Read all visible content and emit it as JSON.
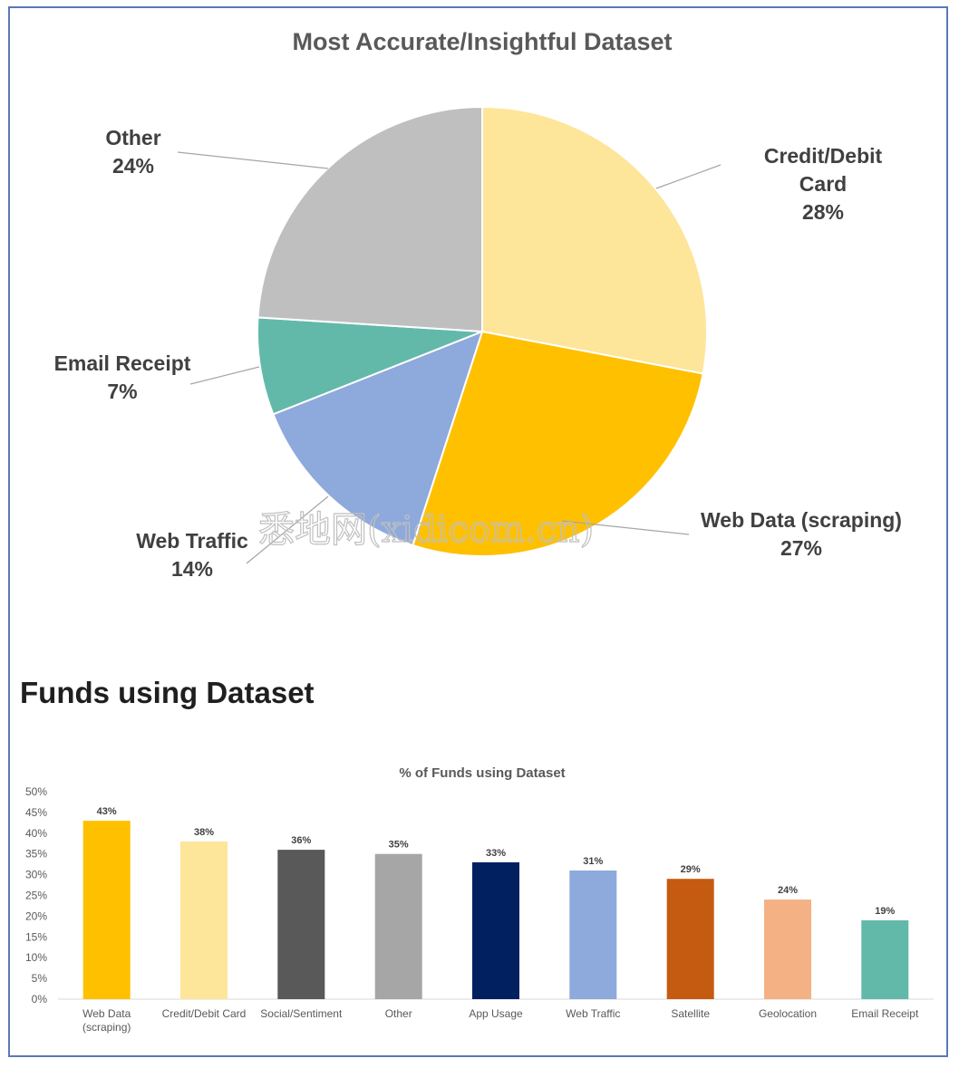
{
  "chart_data": [
    {
      "type": "pie",
      "title": "Most Accurate/Insightful Dataset",
      "slices": [
        {
          "label_lines": [
            "Credit/Debit",
            "Card",
            "28%"
          ],
          "label": "Credit/Debit Card",
          "value": 28,
          "color": "#FDE59A"
        },
        {
          "label_lines": [
            "Web Data (scraping)",
            "27%"
          ],
          "label": "Web Data (scraping)",
          "value": 27,
          "color": "#FFC000"
        },
        {
          "label_lines": [
            "Web Traffic",
            "14%"
          ],
          "label": "Web Traffic",
          "value": 14,
          "color": "#8EA9DB"
        },
        {
          "label_lines": [
            "Email Receipt",
            "7%"
          ],
          "label": "Email Receipt",
          "value": 7,
          "color": "#62B9AA"
        },
        {
          "label_lines": [
            "Other",
            "24%"
          ],
          "label": "Other",
          "value": 24,
          "color": "#BFBFBF"
        }
      ]
    },
    {
      "type": "bar",
      "heading": "Funds using Dataset",
      "title": "% of Funds using Dataset",
      "ylim": [
        0,
        50
      ],
      "yticks": [
        "0%",
        "5%",
        "10%",
        "15%",
        "20%",
        "25%",
        "30%",
        "35%",
        "40%",
        "45%",
        "50%"
      ],
      "categories": [
        [
          "Web Data",
          "(scraping)"
        ],
        [
          "Credit/Debit Card"
        ],
        [
          "Social/Sentiment"
        ],
        [
          "Other"
        ],
        [
          "App Usage"
        ],
        [
          "Web Traffic"
        ],
        [
          "Satellite"
        ],
        [
          "Geolocation"
        ],
        [
          "Email Receipt"
        ]
      ],
      "values": [
        43,
        38,
        36,
        35,
        33,
        31,
        29,
        24,
        19
      ],
      "data_labels": [
        "43%",
        "38%",
        "36%",
        "35%",
        "33%",
        "31%",
        "29%",
        "24%",
        "19%"
      ],
      "colors": [
        "#FFC000",
        "#FDE59A",
        "#595959",
        "#A6A6A6",
        "#002060",
        "#8EA9DB",
        "#C55A11",
        "#F4B183",
        "#62B9AA"
      ]
    }
  ],
  "watermark": "悉地网(xidicom.cn)"
}
